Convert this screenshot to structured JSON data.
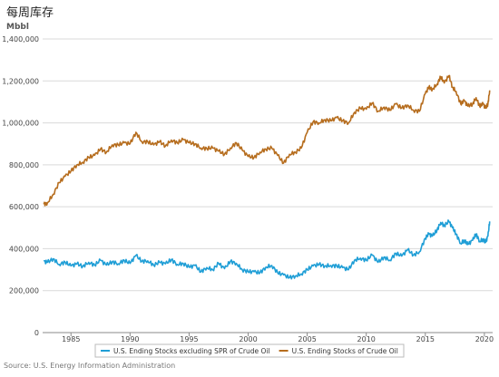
{
  "chart_data": {
    "type": "line",
    "title": "每周库存",
    "ylabel": "Mbbl",
    "ylim": [
      0,
      1400000
    ],
    "xlim": [
      1982.6,
      2020.7
    ],
    "yticks": [
      0,
      200000,
      400000,
      600000,
      800000,
      1000000,
      1200000,
      1400000
    ],
    "ytick_labels": [
      "0",
      "200,000",
      "400,000",
      "600,000",
      "800,000",
      "1,000,000",
      "1,200,000",
      "1,400,000"
    ],
    "xticks": [
      1985,
      1990,
      1995,
      2000,
      2005,
      2010,
      2015,
      2020
    ],
    "xtick_labels": [
      "1985",
      "1990",
      "1995",
      "2000",
      "2005",
      "2010",
      "2015",
      "2020"
    ],
    "grid": "horizontal",
    "legend_position": "bottom-center",
    "series": [
      {
        "name": "U.S. Ending Stocks excluding SPR of Crude Oil",
        "color": "#1f9ed6",
        "x": [
          1982.7,
          1983.0,
          1983.5,
          1984.0,
          1984.5,
          1985.0,
          1985.5,
          1986.0,
          1986.5,
          1987.0,
          1987.5,
          1988.0,
          1988.5,
          1989.0,
          1989.5,
          1990.0,
          1990.5,
          1991.0,
          1991.5,
          1992.0,
          1992.5,
          1993.0,
          1993.5,
          1994.0,
          1994.5,
          1995.0,
          1995.5,
          1996.0,
          1996.5,
          1997.0,
          1997.5,
          1998.0,
          1998.5,
          1999.0,
          1999.5,
          2000.0,
          2000.5,
          2001.0,
          2001.5,
          2002.0,
          2002.5,
          2003.0,
          2003.5,
          2004.0,
          2004.5,
          2005.0,
          2005.5,
          2006.0,
          2006.5,
          2007.0,
          2007.5,
          2008.0,
          2008.5,
          2009.0,
          2009.5,
          2010.0,
          2010.5,
          2011.0,
          2011.5,
          2012.0,
          2012.5,
          2013.0,
          2013.5,
          2014.0,
          2014.5,
          2015.0,
          2015.3,
          2015.6,
          2016.0,
          2016.3,
          2016.6,
          2017.0,
          2017.3,
          2017.6,
          2018.0,
          2018.3,
          2018.6,
          2019.0,
          2019.3,
          2019.6,
          2019.9,
          2020.1,
          2020.3,
          2020.45
        ],
        "values": [
          340000,
          335000,
          352000,
          325000,
          336000,
          318000,
          328000,
          316000,
          335000,
          322000,
          345000,
          322000,
          338000,
          328000,
          345000,
          330000,
          368000,
          340000,
          342000,
          322000,
          335000,
          328000,
          348000,
          325000,
          330000,
          312000,
          320000,
          290000,
          310000,
          300000,
          330000,
          305000,
          340000,
          330000,
          300000,
          290000,
          290000,
          285000,
          312000,
          320000,
          285000,
          275000,
          262000,
          270000,
          280000,
          300000,
          318000,
          325000,
          318000,
          320000,
          318000,
          310000,
          300000,
          345000,
          355000,
          345000,
          370000,
          335000,
          360000,
          345000,
          378000,
          365000,
          395000,
          370000,
          385000,
          450000,
          470000,
          460000,
          490000,
          525000,
          510000,
          530000,
          500000,
          470000,
          425000,
          440000,
          420000,
          440000,
          470000,
          435000,
          445000,
          430000,
          460000,
          530000
        ]
      },
      {
        "name": "U.S. Ending Stocks of Crude Oil",
        "color": "#b66d1e",
        "x": [
          1982.7,
          1983.0,
          1983.5,
          1984.0,
          1984.5,
          1985.0,
          1985.5,
          1986.0,
          1986.5,
          1987.0,
          1987.5,
          1988.0,
          1988.5,
          1989.0,
          1989.5,
          1990.0,
          1990.5,
          1991.0,
          1991.5,
          1992.0,
          1992.5,
          1993.0,
          1993.5,
          1994.0,
          1994.5,
          1995.0,
          1995.5,
          1996.0,
          1996.5,
          1997.0,
          1997.5,
          1998.0,
          1998.5,
          1999.0,
          1999.5,
          2000.0,
          2000.5,
          2001.0,
          2001.5,
          2002.0,
          2002.5,
          2003.0,
          2003.5,
          2004.0,
          2004.5,
          2005.0,
          2005.5,
          2006.0,
          2006.5,
          2007.0,
          2007.5,
          2008.0,
          2008.5,
          2009.0,
          2009.5,
          2010.0,
          2010.5,
          2011.0,
          2011.5,
          2012.0,
          2012.5,
          2013.0,
          2013.5,
          2014.0,
          2014.5,
          2015.0,
          2015.3,
          2015.6,
          2016.0,
          2016.3,
          2016.6,
          2017.0,
          2017.3,
          2017.6,
          2018.0,
          2018.3,
          2018.6,
          2019.0,
          2019.3,
          2019.6,
          2019.9,
          2020.1,
          2020.3,
          2020.45
        ],
        "values": [
          612000,
          618000,
          660000,
          715000,
          745000,
          770000,
          800000,
          812000,
          835000,
          845000,
          875000,
          860000,
          895000,
          895000,
          905000,
          900000,
          955000,
          910000,
          910000,
          895000,
          910000,
          890000,
          918000,
          905000,
          920000,
          905000,
          900000,
          880000,
          878000,
          880000,
          865000,
          850000,
          880000,
          905000,
          870000,
          840000,
          835000,
          860000,
          875000,
          880000,
          845000,
          808000,
          850000,
          860000,
          880000,
          955000,
          1005000,
          1000000,
          1015000,
          1010000,
          1025000,
          1010000,
          1000000,
          1050000,
          1070000,
          1065000,
          1095000,
          1055000,
          1075000,
          1060000,
          1090000,
          1070000,
          1085000,
          1060000,
          1055000,
          1140000,
          1170000,
          1160000,
          1185000,
          1220000,
          1190000,
          1225000,
          1170000,
          1150000,
          1090000,
          1105000,
          1080000,
          1090000,
          1120000,
          1080000,
          1090000,
          1070000,
          1090000,
          1155000
        ]
      }
    ],
    "source": "Source: U.S. Energy Information Administration"
  }
}
